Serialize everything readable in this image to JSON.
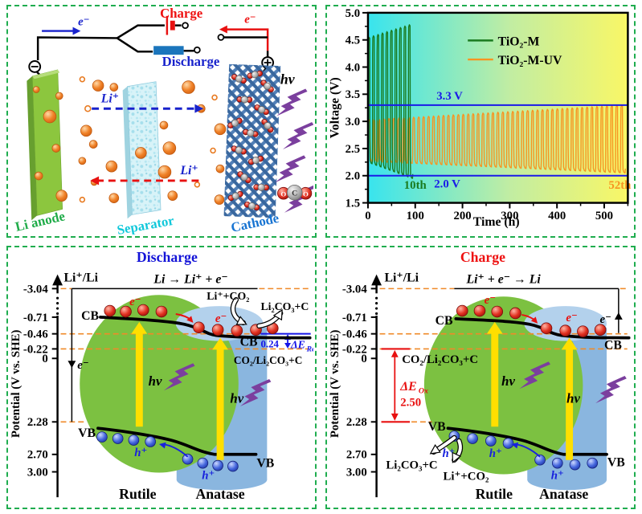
{
  "colors": {
    "panel_border": "#1fad4f",
    "charge_red": "#ee1111",
    "discharge_blue": "#1822cc",
    "anode_green": "#8cc63e",
    "anode_label_green": "#21ac4a",
    "separator_cyan": "#12c8da",
    "cathode_blue": "#1874d2",
    "ion_orange": "#f08228",
    "uv_purple": "#7b3f9e",
    "rutile_green": "#7cc141",
    "anatase_blue": "#8ab6df",
    "photon_yellow": "#ffdf00",
    "ref_line_blue": "#1a1ae8",
    "dashed_orange": "#f08a28"
  },
  "battery": {
    "charge": "Charge",
    "discharge": "Discharge",
    "electron": "e⁻",
    "li_ion": "Li⁺",
    "anode": "Li anode",
    "separator": "Separator",
    "cathode": "Cathode",
    "hv": "hν",
    "o": "O",
    "c": "C"
  },
  "chart_data": {
    "type": "line",
    "title": "",
    "xlabel": "Time (h)",
    "ylabel": "Voltage (V)",
    "xlim": [
      0,
      550
    ],
    "ylim": [
      1.5,
      5.0
    ],
    "x_ticks": [
      0,
      100,
      200,
      300,
      400,
      500
    ],
    "y_ticks": [
      "1.5",
      "2.0",
      "2.5",
      "3.0",
      "3.5",
      "4.0",
      "4.5",
      "5.0"
    ],
    "grid": false,
    "legend_position": "top-center",
    "background_gradient": [
      "#38e4ee",
      "#c2eda2",
      "#f9f766"
    ],
    "ref_lines": [
      {
        "label": "3.3 V",
        "value": 3.3,
        "color": "#1a1ae8"
      },
      {
        "label": "2.0 V",
        "value": 2.0,
        "color": "#1a1ae8"
      }
    ],
    "annotations": [
      {
        "text": "10th",
        "x": 100,
        "y": 1.76,
        "color": "#1a7a1f"
      },
      {
        "text": "52th",
        "x": 533,
        "y": 1.76,
        "color": "#f79421"
      }
    ],
    "series": [
      {
        "name": "TiO₂-M",
        "color": "#1a7a1f",
        "cycles": 10,
        "t_start": 0,
        "t_end": 95,
        "v_charge_start": 4.55,
        "v_charge_end": 4.78,
        "v_discharge_start": 2.22,
        "v_discharge_end": 1.95
      },
      {
        "name": "TiO₂-M-UV",
        "color": "#f79421",
        "cycles": 52,
        "t_start": 0,
        "t_end": 545,
        "v_charge_start": 3.03,
        "v_charge_end": 3.3,
        "v_discharge_start": 2.26,
        "v_discharge_end": 2.05
      }
    ]
  },
  "discharge_panel": {
    "title": "Discharge",
    "ylabel": "Potential (V vs. SHE)",
    "ref": "Li⁺/Li",
    "equation": "Li → Li⁺ + e⁻",
    "ticks": [
      "-3.04",
      "-0.71",
      "-0.46",
      "-0.22",
      "0",
      "2.28",
      "2.70",
      "3.00"
    ],
    "cb": "CB",
    "vb": "VB",
    "rutile": "Rutile",
    "anatase": "Anatase",
    "electron": "e⁻",
    "hole": "h⁺",
    "hv": "hν",
    "reactant": "Li⁺+CO₂",
    "product": "Li₂CO₃+C",
    "redox_couple": "CO₂/Li₂CO₃+C",
    "gap_value": "0.24",
    "gap_label_main": "ΔE",
    "gap_label_sub": "Re"
  },
  "charge_panel": {
    "title": "Charge",
    "ylabel": "Potential (V vs. SHE)",
    "ref": "Li⁺/Li",
    "equation": "Li⁺ + e⁻ → Li",
    "ticks": [
      "-3.04",
      "-0.71",
      "-0.46",
      "-0.22",
      "0",
      "2.28",
      "2.70",
      "3.00"
    ],
    "cb": "CB",
    "vb": "VB",
    "rutile": "Rutile",
    "anatase": "Anatase",
    "electron": "e⁻",
    "hole": "h⁺",
    "hv": "hν",
    "reactant": "Li⁺+CO₂",
    "product": "Li₂CO₃+C",
    "redox_couple": "CO₂/Li₂CO₃+C",
    "gap_value": "2.50",
    "gap_label_main": "ΔE",
    "gap_label_sub": "Ox"
  }
}
